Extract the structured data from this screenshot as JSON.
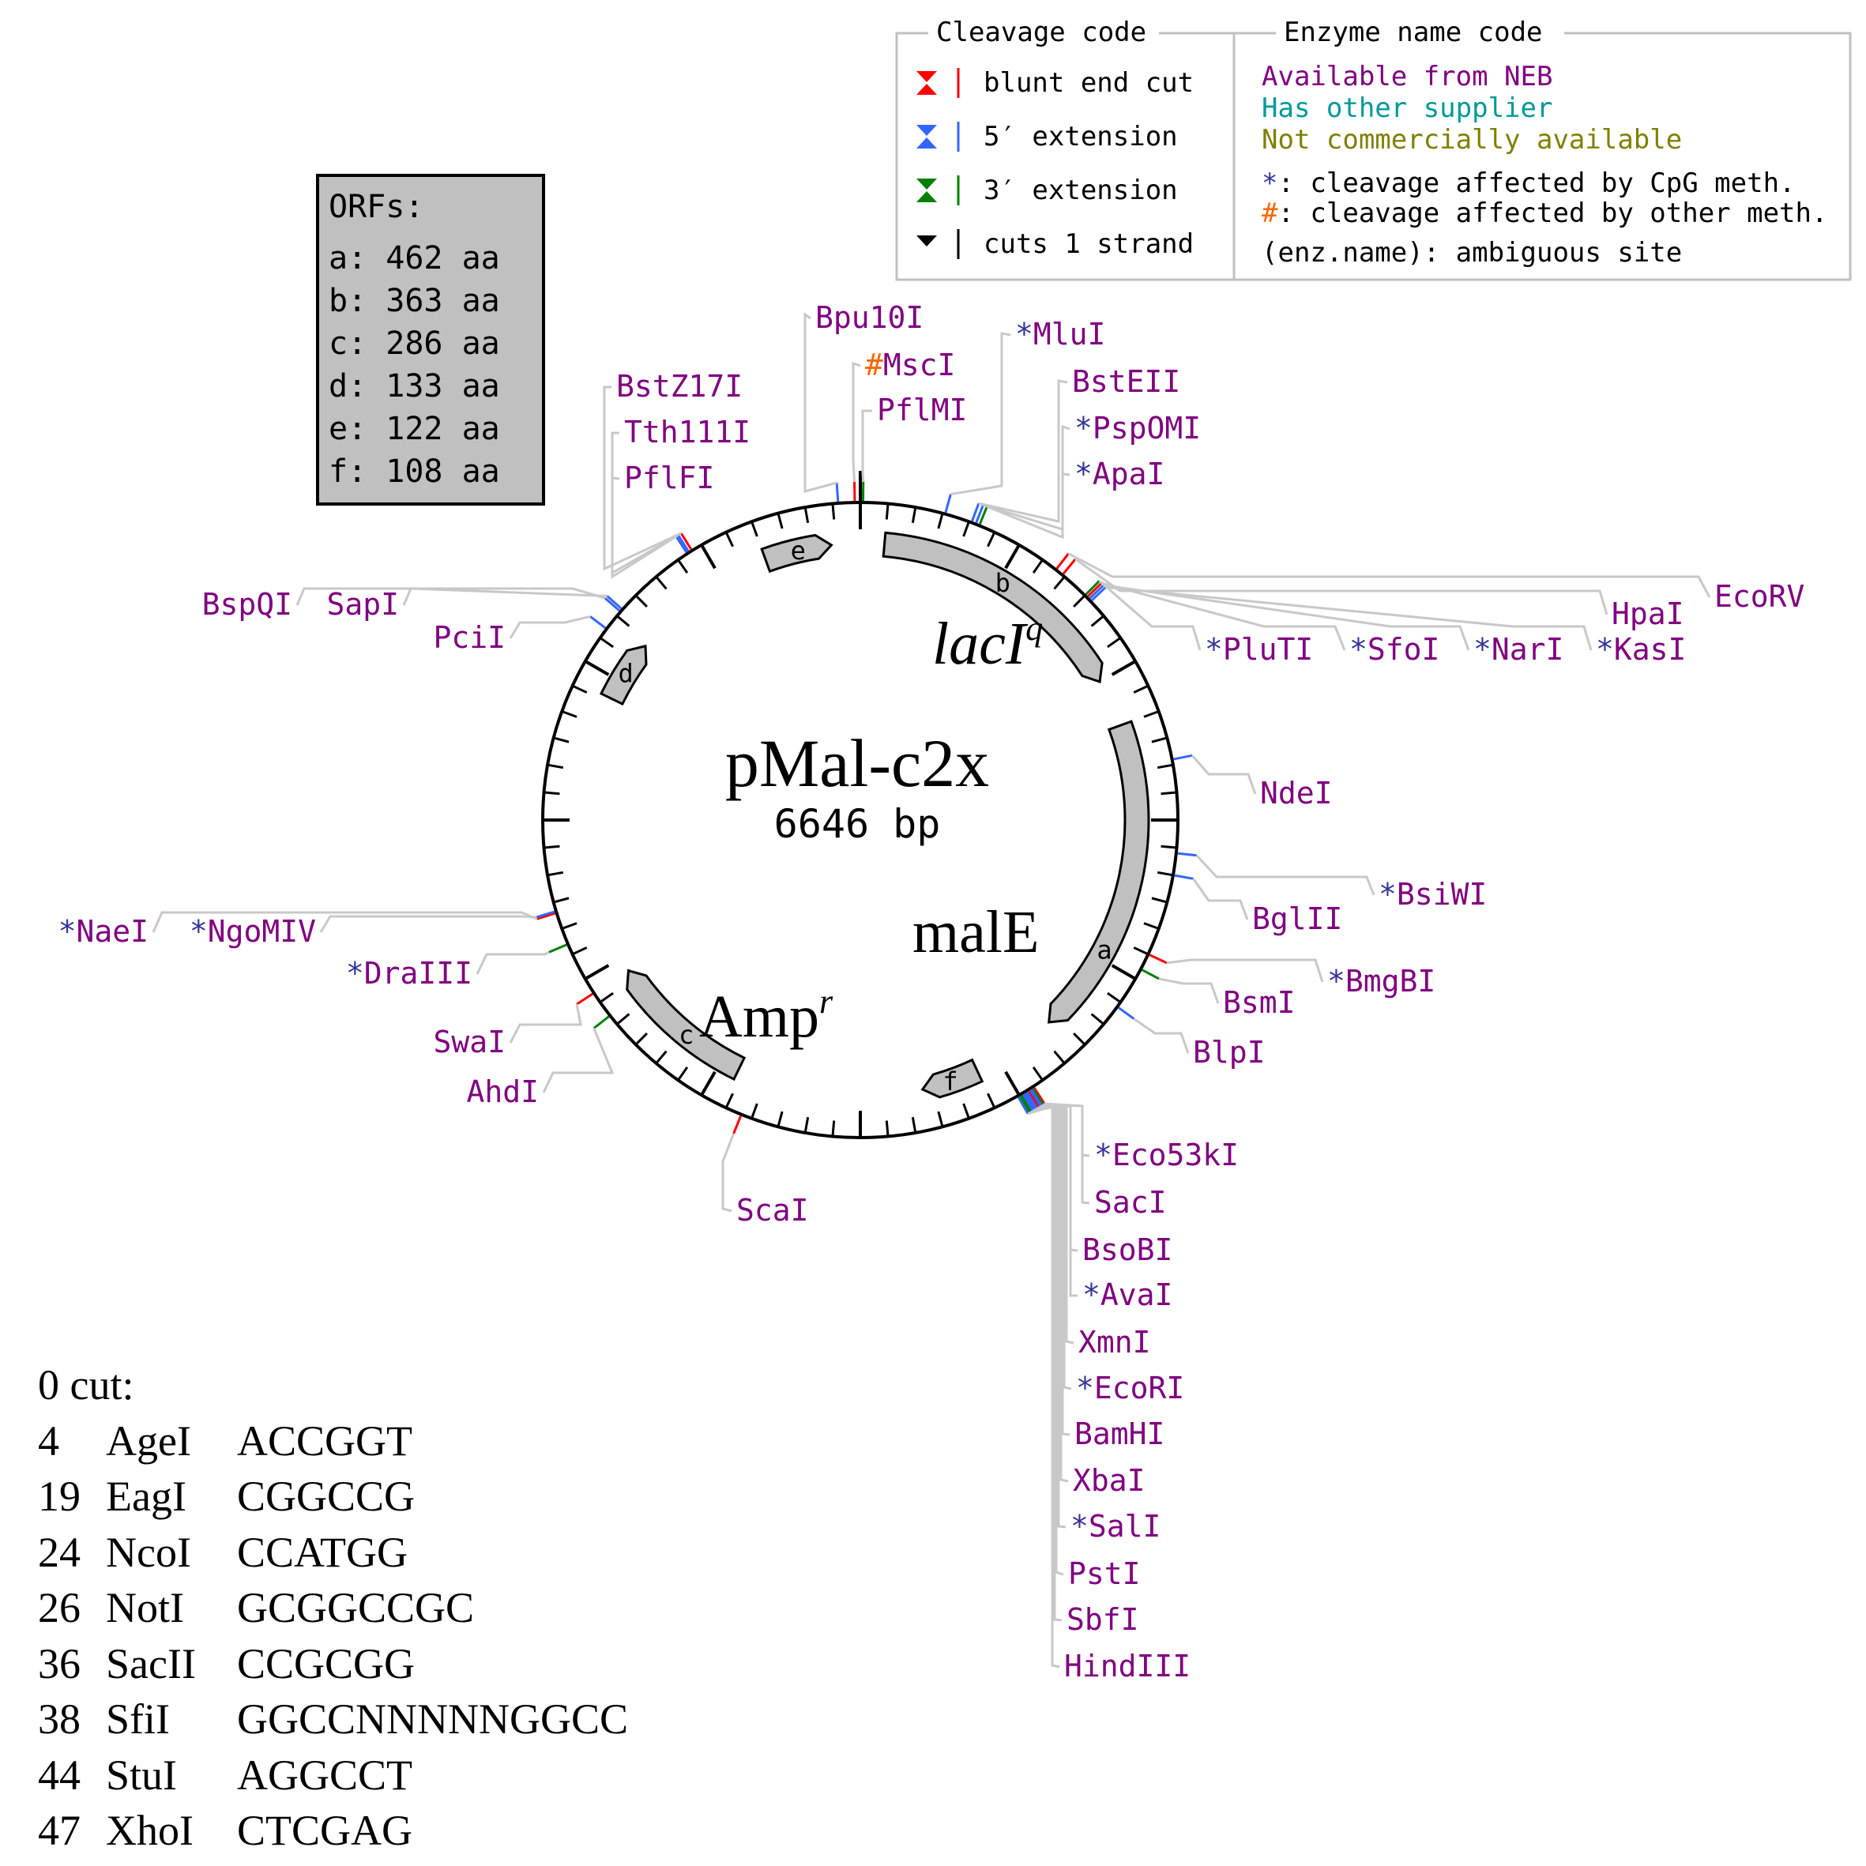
{
  "plasmid": {
    "name": "pMal-c2x",
    "size_label": "6646 bp"
  },
  "gene_labels": {
    "lacI_base": "lacI",
    "lacI_sup": "q",
    "malE": "malE",
    "amp_base": "Amp",
    "amp_sup": "r"
  },
  "orf_box": {
    "title": "ORFs:",
    "items": [
      "a: 462 aa",
      "b: 363 aa",
      "c: 286 aa",
      "d: 133 aa",
      "e: 122 aa",
      "f: 108 aa"
    ]
  },
  "orfs": [
    {
      "id": "a",
      "start_deg": 70,
      "end_deg": 137,
      "label_deg": 118
    },
    {
      "id": "b",
      "start_deg": 5,
      "end_deg": 60,
      "label_deg": 31
    },
    {
      "id": "c",
      "start_deg": 206,
      "end_deg": 237,
      "label_deg": 219
    },
    {
      "id": "d",
      "start_deg": 296,
      "end_deg": 309,
      "label_deg": 302
    },
    {
      "id": "e",
      "start_deg": 340,
      "end_deg": 354,
      "label_deg": 347
    },
    {
      "id": "f",
      "start_deg": 155,
      "end_deg": 167,
      "label_deg": 161
    }
  ],
  "legend": {
    "cleavage_title": "Cleavage code",
    "cleavage_items": [
      {
        "label": "blunt end cut",
        "top_color": "#ff0000",
        "bottom_color": "#ff0000"
      },
      {
        "label": "5′ extension",
        "top_color": "#3366ff",
        "bottom_color": "#3366ff"
      },
      {
        "label": "3′ extension",
        "top_color": "#008000",
        "bottom_color": "#008000"
      },
      {
        "label": "cuts 1 strand",
        "top_color": "#000000",
        "bottom_color": "#000000"
      }
    ],
    "enzyme_title": "Enzyme name code",
    "enzyme_items": [
      {
        "text": "Available from NEB",
        "color": "#800080"
      },
      {
        "text": "Has other supplier",
        "color": "#009999"
      },
      {
        "text": "Not commercially available",
        "color": "#808000"
      }
    ],
    "notes": [
      {
        "symbol": "*",
        "symbol_color": "#333399",
        "text": ": cleavage affected by CpG meth."
      },
      {
        "symbol": "#",
        "symbol_color": "#ff6600",
        "text": ": cleavage affected by other meth."
      },
      {
        "symbol": "",
        "symbol_color": "#000000",
        "text": "(enz.name): ambiguous site"
      }
    ]
  },
  "colors": {
    "neb": "#800080",
    "cpg": "#333399",
    "other_meth": "#ff6600",
    "blunt": "#ff0000",
    "five_prime": "#3366ff",
    "three_prime": "#008000",
    "orf_fill": "#c0c0c0"
  },
  "enzymes": [
    {
      "name": "Bpu10I",
      "prefix": "",
      "cut": "five_prime",
      "angle": 356
    },
    {
      "name": "MscI",
      "prefix": "#",
      "cut": "blunt",
      "angle": 359
    },
    {
      "name": "PflMI",
      "prefix": "",
      "cut": "three_prime",
      "angle": 0.5
    },
    {
      "name": "MluI",
      "prefix": "*",
      "cut": "five_prime",
      "angle": 15.5
    },
    {
      "name": "BstEII",
      "prefix": "",
      "cut": "five_prime",
      "angle": 20.5
    },
    {
      "name": "PspOMI",
      "prefix": "*",
      "cut": "five_prime",
      "angle": 21.3
    },
    {
      "name": "ApaI",
      "prefix": "*",
      "cut": "three_prime",
      "angle": 22
    },
    {
      "name": "EcoRV",
      "prefix": "",
      "cut": "blunt",
      "angle": 38
    },
    {
      "name": "HpaI",
      "prefix": "",
      "cut": "blunt",
      "angle": 39.5
    },
    {
      "name": "PluTI",
      "prefix": "*",
      "cut": "three_prime",
      "angle": 45
    },
    {
      "name": "SfoI",
      "prefix": "*",
      "cut": "blunt",
      "angle": 45.5
    },
    {
      "name": "NarI",
      "prefix": "*",
      "cut": "five_prime",
      "angle": 46
    },
    {
      "name": "KasI",
      "prefix": "*",
      "cut": "five_prime",
      "angle": 46.5
    },
    {
      "name": "NdeI",
      "prefix": "",
      "cut": "five_prime",
      "angle": 79
    },
    {
      "name": "BsiWI",
      "prefix": "*",
      "cut": "five_prime",
      "angle": 96
    },
    {
      "name": "BglII",
      "prefix": "",
      "cut": "five_prime",
      "angle": 100
    },
    {
      "name": "BmgBI",
      "prefix": "*",
      "cut": "blunt",
      "angle": 115
    },
    {
      "name": "BsmI",
      "prefix": "",
      "cut": "three_prime",
      "angle": 118
    },
    {
      "name": "BlpI",
      "prefix": "",
      "cut": "five_prime",
      "angle": 126
    },
    {
      "name": "Eco53kI",
      "prefix": "*",
      "cut": "blunt",
      "angle": 147
    },
    {
      "name": "SacI",
      "prefix": "",
      "cut": "three_prime",
      "angle": 147.3
    },
    {
      "name": "BsoBI",
      "prefix": "",
      "cut": "five_prime",
      "angle": 147.6
    },
    {
      "name": "AvaI",
      "prefix": "*",
      "cut": "five_prime",
      "angle": 147.9
    },
    {
      "name": "XmnI",
      "prefix": "",
      "cut": "blunt",
      "angle": 148.2
    },
    {
      "name": "EcoRI",
      "prefix": "*",
      "cut": "five_prime",
      "angle": 148.5
    },
    {
      "name": "BamHI",
      "prefix": "",
      "cut": "five_prime",
      "angle": 148.8
    },
    {
      "name": "XbaI",
      "prefix": "",
      "cut": "five_prime",
      "angle": 149.1
    },
    {
      "name": "SalI",
      "prefix": "*",
      "cut": "five_prime",
      "angle": 149.4
    },
    {
      "name": "PstI",
      "prefix": "",
      "cut": "three_prime",
      "angle": 149.7
    },
    {
      "name": "SbfI",
      "prefix": "",
      "cut": "three_prime",
      "angle": 150
    },
    {
      "name": "HindIII",
      "prefix": "",
      "cut": "five_prime",
      "angle": 150.3
    },
    {
      "name": "ScaI",
      "prefix": "",
      "cut": "blunt",
      "angle": 202
    },
    {
      "name": "AhdI",
      "prefix": "",
      "cut": "three_prime",
      "angle": 232
    },
    {
      "name": "SwaI",
      "prefix": "",
      "cut": "blunt",
      "angle": 237
    },
    {
      "name": "DraIII",
      "prefix": "*",
      "cut": "three_prime",
      "angle": 247
    },
    {
      "name": "NaeI",
      "prefix": "*",
      "cut": "blunt",
      "angle": 253
    },
    {
      "name": "NgoMIV",
      "prefix": "*",
      "cut": "five_prime",
      "angle": 253.3
    },
    {
      "name": "PciI",
      "prefix": "",
      "cut": "five_prime",
      "angle": 307
    },
    {
      "name": "SapI",
      "prefix": "",
      "cut": "five_prime",
      "angle": 311
    },
    {
      "name": "BspQI",
      "prefix": "",
      "cut": "five_prime",
      "angle": 311.5
    },
    {
      "name": "PflFI",
      "prefix": "",
      "cut": "five_prime",
      "angle": 327
    },
    {
      "name": "Tth111I",
      "prefix": "",
      "cut": "five_prime",
      "angle": 327.4
    },
    {
      "name": "BstZ17I",
      "prefix": "",
      "cut": "blunt",
      "angle": 328
    }
  ],
  "zero_cut": {
    "title": "0 cut:",
    "rows": [
      {
        "pos": "4",
        "name": "AgeI",
        "site": "ACCGGT"
      },
      {
        "pos": "19",
        "name": "EagI",
        "site": "CGGCCG"
      },
      {
        "pos": "24",
        "name": "NcoI",
        "site": "CCATGG"
      },
      {
        "pos": "26",
        "name": "NotI",
        "site": "GCGGCCGC"
      },
      {
        "pos": "36",
        "name": "SacII",
        "site": "CCGCGG"
      },
      {
        "pos": "38",
        "name": "SfiI",
        "site": "GGCCNNNNNGGCC"
      },
      {
        "pos": "44",
        "name": "StuI",
        "site": "AGGCCT"
      },
      {
        "pos": "47",
        "name": "XhoI",
        "site": "CTCGAG"
      }
    ]
  }
}
